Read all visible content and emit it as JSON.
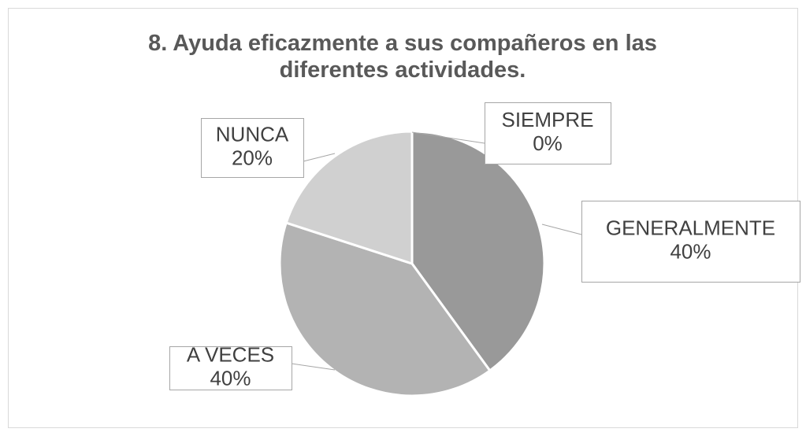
{
  "chart_data": {
    "type": "pie",
    "title": "8. Ayuda eficazmente a sus compañeros en las diferentes actividades.",
    "categories": [
      "SIEMPRE",
      "GENERALMENTE",
      "A VECES",
      "NUNCA"
    ],
    "values": [
      0,
      40,
      40,
      20
    ],
    "value_labels": [
      "0%",
      "40%",
      "40%",
      "20%"
    ],
    "colors": [
      "#7f7f7f",
      "#999999",
      "#b3b3b3",
      "#d0d0d0"
    ]
  }
}
